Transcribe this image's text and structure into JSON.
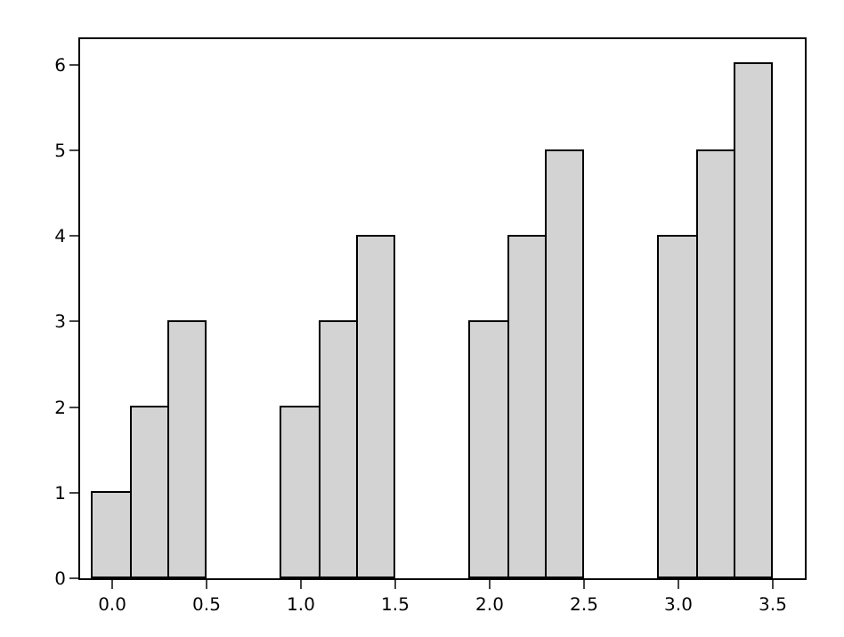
{
  "chart_data": {
    "type": "bar",
    "xlim": [
      -0.17,
      3.67
    ],
    "ylim": [
      0,
      6.3
    ],
    "xticks": [
      {
        "value": 0,
        "label": "0.0"
      },
      {
        "value": 0.5,
        "label": "0.5"
      },
      {
        "value": 1,
        "label": "1.0"
      },
      {
        "value": 1.5,
        "label": "1.5"
      },
      {
        "value": 2,
        "label": "2.0"
      },
      {
        "value": 2.5,
        "label": "2.5"
      },
      {
        "value": 3,
        "label": "3.0"
      },
      {
        "value": 3.5,
        "label": "3.5"
      }
    ],
    "yticks": [
      0,
      1,
      2,
      3,
      4,
      5,
      6
    ],
    "series": [
      {
        "color": "#d3d3d3",
        "x": [
          0,
          1,
          2,
          3
        ],
        "values": [
          1,
          2,
          3,
          4
        ]
      },
      {
        "color": "#d3d3d3",
        "x": [
          0.2,
          1.2,
          2.2,
          3.2
        ],
        "values": [
          2,
          3,
          4,
          5
        ]
      },
      {
        "color": "#d3d3d3",
        "x": [
          0.4,
          1.4,
          2.4,
          3.4
        ],
        "values": [
          3,
          4,
          5,
          6
        ]
      }
    ]
  }
}
